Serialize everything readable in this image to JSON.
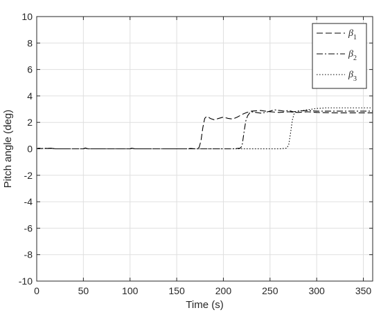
{
  "chart_data": {
    "type": "line",
    "title": "",
    "xlabel": "Time (s)",
    "ylabel": "Pitch angle (deg)",
    "xlim": [
      0,
      360
    ],
    "ylim": [
      -10,
      10
    ],
    "x_ticks": [
      0,
      50,
      100,
      150,
      200,
      250,
      300,
      350
    ],
    "y_ticks": [
      -10,
      -8,
      -6,
      -4,
      -2,
      0,
      2,
      4,
      6,
      8,
      10
    ],
    "grid": true,
    "legend_position": "top-right",
    "series": [
      {
        "name": "β1",
        "name_base": "β",
        "name_sub": "1",
        "dash": "dashed",
        "color": "#000000",
        "x": [
          0,
          2,
          5,
          8,
          12,
          15,
          20,
          50,
          52,
          55,
          100,
          102,
          105,
          160,
          165,
          170,
          174,
          176,
          178,
          180,
          182,
          184,
          186,
          190,
          195,
          200,
          205,
          210,
          215,
          220,
          225,
          230,
          240,
          250,
          260,
          270,
          280,
          290,
          300,
          320,
          340,
          360
        ],
        "y": [
          0,
          0.05,
          0.02,
          0.04,
          0.03,
          0.05,
          0,
          0,
          0.06,
          0,
          0,
          0.05,
          0,
          0,
          0.03,
          0,
          0.1,
          0.6,
          1.6,
          2.3,
          2.45,
          2.4,
          2.3,
          2.2,
          2.3,
          2.4,
          2.3,
          2.25,
          2.4,
          2.6,
          2.75,
          2.85,
          2.9,
          2.8,
          2.75,
          2.8,
          2.75,
          2.8,
          2.75,
          2.72,
          2.72,
          2.72
        ]
      },
      {
        "name": "β2",
        "name_base": "β",
        "name_sub": "2",
        "dash": "dashdot",
        "color": "#000000",
        "x": [
          0,
          2,
          5,
          8,
          12,
          15,
          20,
          50,
          52,
          55,
          100,
          102,
          105,
          160,
          170,
          180,
          190,
          200,
          210,
          218,
          220,
          222,
          224,
          226,
          228,
          230,
          235,
          240,
          245,
          250,
          255,
          260,
          265,
          270,
          275,
          280,
          290,
          300,
          320,
          340,
          360
        ],
        "y": [
          0,
          0.05,
          0.02,
          0.04,
          0.03,
          0.05,
          0,
          0,
          0.06,
          0,
          0,
          0.05,
          0,
          0,
          0,
          0,
          0,
          0,
          0,
          0.05,
          0.2,
          1.2,
          2.1,
          2.5,
          2.7,
          2.8,
          2.75,
          2.7,
          2.75,
          2.85,
          2.95,
          2.9,
          2.85,
          2.9,
          2.8,
          2.85,
          2.9,
          2.85,
          2.85,
          2.85,
          2.85
        ]
      },
      {
        "name": "β3",
        "name_base": "β",
        "name_sub": "3",
        "dash": "dotted",
        "color": "#000000",
        "x": [
          0,
          2,
          5,
          8,
          12,
          15,
          20,
          50,
          52,
          55,
          100,
          102,
          105,
          160,
          200,
          220,
          240,
          260,
          268,
          270,
          272,
          274,
          276,
          280,
          285,
          290,
          300,
          310,
          320,
          340,
          360
        ],
        "y": [
          0,
          0.05,
          0.02,
          0.04,
          0.03,
          0.05,
          0,
          0,
          0.06,
          0,
          0,
          0.05,
          0,
          0,
          0,
          0,
          0,
          0,
          0.05,
          0.3,
          1.2,
          2.2,
          2.7,
          2.85,
          2.9,
          2.95,
          3.05,
          3.1,
          3.1,
          3.1,
          3.1
        ]
      }
    ]
  }
}
